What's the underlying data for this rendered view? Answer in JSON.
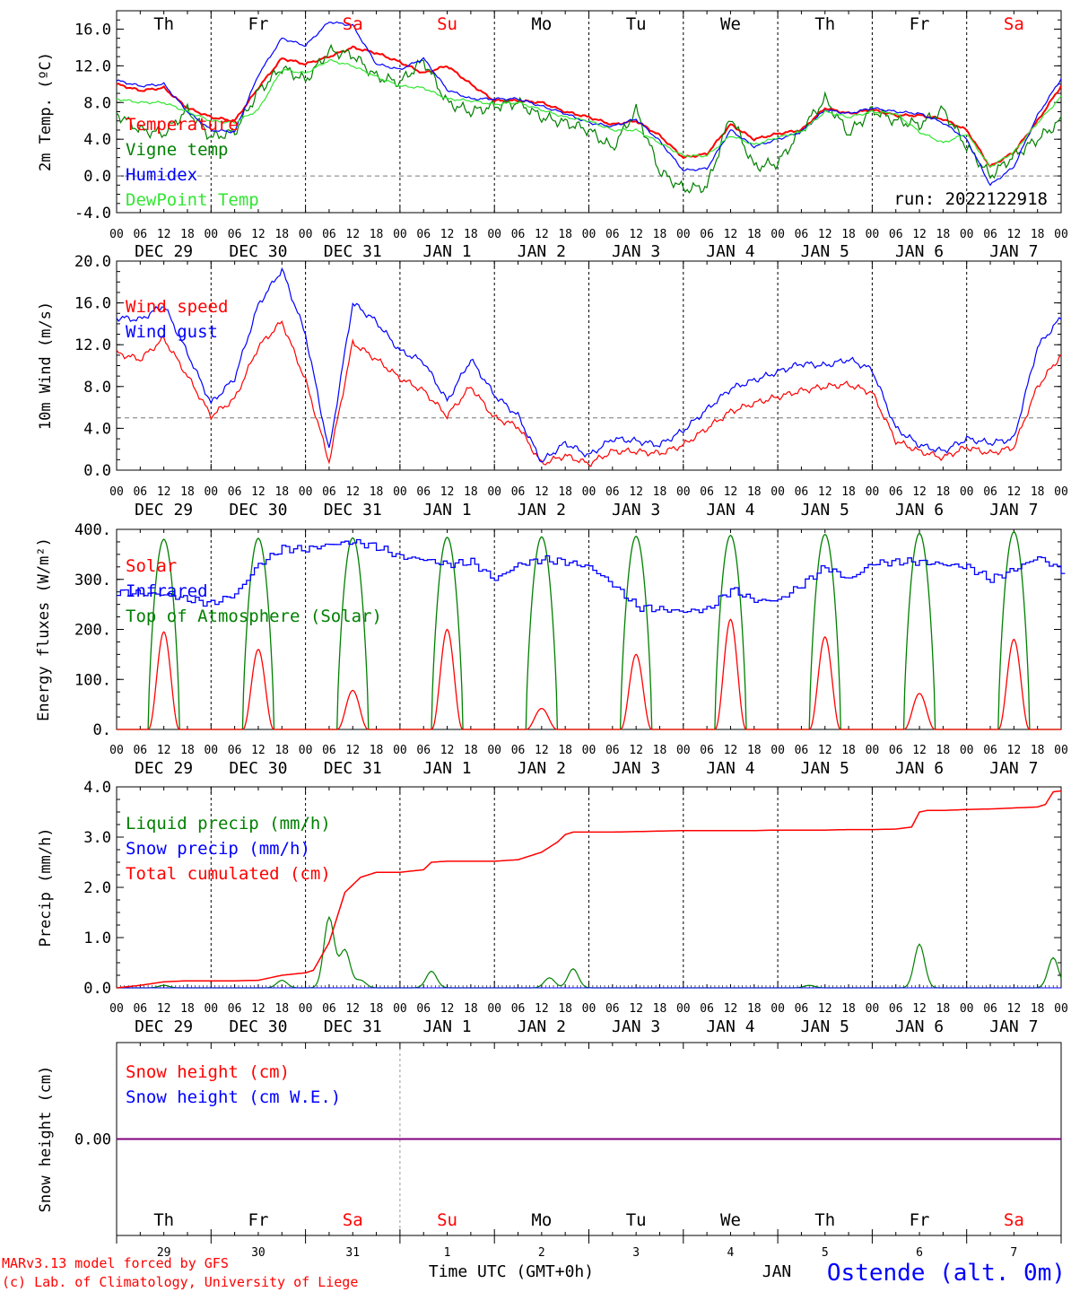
{
  "days": [
    "Th",
    "Fr",
    "Sa",
    "Su",
    "Mo",
    "Tu",
    "We",
    "Th",
    "Fr",
    "Sa"
  ],
  "weekend_days": [
    "Sa",
    "Su"
  ],
  "date_labels": [
    "DEC 29",
    "DEC 30",
    "DEC 31",
    "JAN  1",
    "JAN  2",
    "JAN  3",
    "JAN  4",
    "JAN  5",
    "JAN  6",
    "JAN  7"
  ],
  "hour_ticks": [
    "00",
    "06",
    "12",
    "18"
  ],
  "bottom_day_numbers": [
    "29",
    "30",
    "31",
    "1",
    "2",
    "3",
    "4",
    "5",
    "6",
    "7"
  ],
  "footer": {
    "model": "MARv3.13 model forced by GFS",
    "copyright": "(c) Lab. of Climatology, University of Liege",
    "time_axis": "Time UTC (GMT+0h)",
    "month": "JAN",
    "location": "Ostende (alt. 0m)"
  },
  "colors": {
    "red": "#ff0000",
    "green": "#008000",
    "blue": "#0000ff",
    "lightgreen": "#33e633",
    "purple": "#7f007f"
  },
  "chart_data": [
    {
      "type": "line",
      "ylabel": "2m Temp. (ºC)",
      "ylim": [
        -4,
        18
      ],
      "yticks": [
        "-4.0",
        "0.0",
        "4.0",
        "8.0",
        "12.0",
        "16.0"
      ],
      "ytick_values": [
        -4,
        0,
        4,
        8,
        12,
        16
      ],
      "ref_line": 0,
      "run_label": "run: 2022122918",
      "x_unit": "hours since DEC 29 00 UTC",
      "series": [
        {
          "name": "Temperature",
          "color": "#ff0000",
          "x": [
            0,
            6,
            12,
            18,
            24,
            30,
            36,
            42,
            48,
            54,
            60,
            66,
            72,
            78,
            84,
            90,
            96,
            102,
            108,
            114,
            120,
            126,
            132,
            138,
            144,
            150,
            156,
            162,
            168,
            174,
            180,
            186,
            192,
            198,
            204,
            210,
            216,
            222,
            228,
            234,
            240
          ],
          "values": [
            10,
            9.3,
            9.6,
            7.4,
            6.4,
            6.0,
            9.6,
            12.8,
            12.2,
            13.0,
            14.0,
            13.4,
            12.4,
            11.2,
            12.0,
            10.0,
            8.2,
            8.2,
            8.0,
            7.0,
            6.4,
            5.6,
            6.0,
            4.4,
            2.0,
            2.4,
            5.6,
            4.0,
            4.6,
            5.0,
            7.4,
            6.8,
            7.2,
            6.6,
            6.6,
            6.2,
            5.0,
            1.0,
            2.6,
            6.0,
            9.8
          ]
        },
        {
          "name": "Vigne temp",
          "color": "#008000",
          "x": [
            0,
            6,
            12,
            18,
            24,
            30,
            36,
            42,
            48,
            54,
            60,
            66,
            72,
            78,
            84,
            90,
            96,
            102,
            108,
            114,
            120,
            126,
            132,
            138,
            144,
            150,
            156,
            162,
            168,
            174,
            180,
            186,
            192,
            198,
            204,
            210,
            216,
            222,
            228,
            234,
            240
          ],
          "values": [
            6.8,
            5.0,
            4.6,
            7.2,
            4.2,
            4.8,
            9.2,
            11.8,
            10.4,
            13.6,
            13.2,
            10.8,
            10.2,
            12.6,
            8.0,
            7.0,
            7.6,
            8.0,
            6.4,
            5.8,
            5.0,
            3.0,
            7.2,
            0.5,
            -1.4,
            -1.2,
            6.6,
            1.0,
            1.4,
            5.0,
            8.4,
            4.6,
            7.2,
            6.0,
            5.6,
            7.2,
            3.2,
            0.0,
            2.2,
            4.0,
            6.0
          ]
        },
        {
          "name": "Humidex",
          "color": "#0000ff",
          "x": [
            0,
            6,
            12,
            18,
            24,
            30,
            36,
            42,
            48,
            54,
            60,
            66,
            72,
            78,
            84,
            90,
            96,
            102,
            108,
            114,
            120,
            126,
            132,
            138,
            144,
            150,
            156,
            162,
            168,
            174,
            180,
            186,
            192,
            198,
            204,
            210,
            216,
            222,
            228,
            234,
            240
          ],
          "values": [
            10.4,
            9.8,
            10.0,
            7.0,
            5.0,
            4.8,
            11.0,
            15.0,
            14.2,
            16.8,
            16.4,
            12.2,
            11.6,
            12.8,
            9.4,
            8.4,
            8.4,
            8.4,
            7.6,
            6.8,
            5.8,
            5.4,
            6.2,
            3.8,
            0.6,
            0.8,
            5.0,
            3.2,
            4.0,
            4.8,
            7.2,
            6.8,
            7.4,
            7.0,
            6.8,
            5.8,
            4.0,
            -1.0,
            1.0,
            6.6,
            10.6
          ]
        },
        {
          "name": "DewPoint Temp",
          "color": "#33e633",
          "x": [
            0,
            6,
            12,
            18,
            24,
            30,
            36,
            42,
            48,
            54,
            60,
            66,
            72,
            78,
            84,
            90,
            96,
            102,
            108,
            114,
            120,
            126,
            132,
            138,
            144,
            150,
            156,
            162,
            168,
            174,
            180,
            186,
            192,
            198,
            204,
            210,
            216,
            222,
            228,
            234,
            240
          ],
          "values": [
            8.4,
            8.0,
            8.0,
            7.0,
            6.0,
            5.8,
            7.2,
            11.6,
            11.2,
            12.6,
            12.0,
            10.8,
            9.8,
            9.6,
            8.4,
            8.2,
            7.8,
            8.0,
            7.2,
            6.4,
            6.0,
            5.0,
            5.0,
            3.6,
            2.2,
            2.2,
            4.4,
            3.4,
            4.2,
            4.8,
            7.0,
            6.4,
            7.0,
            6.8,
            4.8,
            3.6,
            4.6,
            1.0,
            2.6,
            5.8,
            8.6
          ]
        }
      ]
    },
    {
      "type": "line",
      "ylabel": "10m Wind (m/s)",
      "ylim": [
        0,
        20
      ],
      "yticks": [
        "0.0",
        "4.0",
        "8.0",
        "12.0",
        "16.0",
        "20.0"
      ],
      "ytick_values": [
        0,
        4,
        8,
        12,
        16,
        20
      ],
      "ref_line": 5,
      "x_unit": "hours since DEC 29 00 UTC",
      "series": [
        {
          "name": "Wind speed",
          "color": "#ff0000",
          "x": [
            0,
            6,
            12,
            18,
            24,
            30,
            36,
            42,
            48,
            54,
            60,
            66,
            72,
            78,
            84,
            90,
            96,
            102,
            108,
            114,
            120,
            126,
            132,
            138,
            144,
            150,
            156,
            162,
            168,
            174,
            180,
            186,
            192,
            198,
            204,
            210,
            216,
            222,
            228,
            234,
            240
          ],
          "values": [
            11.2,
            10.6,
            12.6,
            9.0,
            5.2,
            6.8,
            11.8,
            14.2,
            8.6,
            0.8,
            12.2,
            10.6,
            8.8,
            7.6,
            5.2,
            8.0,
            5.0,
            4.2,
            0.6,
            1.4,
            0.6,
            1.8,
            1.8,
            1.6,
            2.4,
            4.0,
            5.6,
            6.4,
            7.0,
            7.6,
            8.0,
            8.2,
            7.4,
            2.8,
            1.8,
            1.2,
            2.2,
            1.6,
            2.2,
            8.0,
            11.0
          ]
        },
        {
          "name": "Wind gust",
          "color": "#0000ff",
          "x": [
            0,
            6,
            12,
            18,
            24,
            30,
            36,
            42,
            48,
            54,
            60,
            66,
            72,
            78,
            84,
            90,
            96,
            102,
            108,
            114,
            120,
            126,
            132,
            138,
            144,
            150,
            156,
            162,
            168,
            174,
            180,
            186,
            192,
            198,
            204,
            210,
            216,
            222,
            228,
            234,
            240
          ],
          "values": [
            14.6,
            14.4,
            15.8,
            11.2,
            6.4,
            8.8,
            15.8,
            19.2,
            13.0,
            1.8,
            16.0,
            14.2,
            11.4,
            10.4,
            6.6,
            10.6,
            7.2,
            5.2,
            0.8,
            2.6,
            1.4,
            3.0,
            2.8,
            2.4,
            3.8,
            5.8,
            7.8,
            8.6,
            9.4,
            10.2,
            10.0,
            10.6,
            9.6,
            4.0,
            2.4,
            1.8,
            3.0,
            2.6,
            3.0,
            11.8,
            14.6
          ]
        }
      ]
    },
    {
      "type": "line",
      "ylabel": "Energy fluxes (W/m²)",
      "ylim": [
        0,
        400
      ],
      "yticks": [
        "0.",
        "100.",
        "200.",
        "300.",
        "400."
      ],
      "ytick_values": [
        0,
        100,
        200,
        300,
        400
      ],
      "x_unit": "hours since DEC 29 00 UTC",
      "daylight_hours": [
        8,
        16
      ],
      "series": [
        {
          "name": "Solar",
          "color": "#ff0000",
          "daily_peak": [
            195,
            160,
            78,
            200,
            42,
            150,
            220,
            185,
            72,
            180
          ]
        },
        {
          "name": "Infrared",
          "color": "#0000ff",
          "x": [
            0,
            6,
            12,
            18,
            24,
            30,
            36,
            42,
            48,
            54,
            60,
            66,
            72,
            78,
            84,
            90,
            96,
            102,
            108,
            114,
            120,
            126,
            132,
            138,
            144,
            150,
            156,
            162,
            168,
            174,
            180,
            186,
            192,
            198,
            204,
            210,
            216,
            222,
            228,
            234,
            240
          ],
          "values": [
            275,
            272,
            270,
            260,
            252,
            270,
            330,
            362,
            360,
            370,
            375,
            365,
            345,
            340,
            330,
            335,
            300,
            330,
            340,
            335,
            325,
            290,
            245,
            240,
            236,
            240,
            280,
            258,
            258,
            290,
            325,
            300,
            332,
            335,
            335,
            330,
            325,
            300,
            320,
            345,
            318
          ]
        },
        {
          "name": "Top of Atmosphere (Solar)",
          "color": "#008000",
          "daily_peak": [
            380,
            382,
            383,
            384,
            385,
            386,
            388,
            390,
            392,
            395
          ]
        }
      ]
    },
    {
      "type": "line",
      "ylabel": "Precip (mm/h)",
      "ylim": [
        0,
        4
      ],
      "yticks": [
        "0.0",
        "1.0",
        "2.0",
        "3.0",
        "4.0"
      ],
      "ytick_values": [
        0,
        1,
        2,
        3,
        4
      ],
      "x_unit": "hours since DEC 29 00 UTC",
      "series": [
        {
          "name": "Liquid precip (mm/h)",
          "color": "#008000",
          "peaks": [
            [
              12,
              0.05
            ],
            [
              42,
              0.15
            ],
            [
              54,
              1.4
            ],
            [
              58,
              0.75
            ],
            [
              62,
              0.15
            ],
            [
              80,
              0.33
            ],
            [
              110,
              0.2
            ],
            [
              116,
              0.38
            ],
            [
              176,
              0.05
            ],
            [
              204,
              0.87
            ],
            [
              238,
              0.6
            ]
          ]
        },
        {
          "name": "Snow precip (mm/h)",
          "color": "#0000ff",
          "values": [
            0
          ]
        },
        {
          "name": "Total cumulated (cm)",
          "color": "#ff0000",
          "x": [
            0,
            6,
            12,
            18,
            24,
            30,
            36,
            42,
            48,
            50,
            54,
            58,
            62,
            66,
            72,
            78,
            80,
            84,
            90,
            96,
            102,
            108,
            112,
            114,
            116,
            120,
            126,
            132,
            138,
            144,
            150,
            156,
            162,
            168,
            174,
            180,
            186,
            192,
            198,
            202,
            204,
            206,
            210,
            216,
            222,
            228,
            234,
            236,
            238,
            240
          ],
          "values": [
            0,
            0.05,
            0.12,
            0.14,
            0.14,
            0.14,
            0.15,
            0.25,
            0.3,
            0.35,
            0.9,
            1.9,
            2.2,
            2.3,
            2.3,
            2.35,
            2.5,
            2.52,
            2.52,
            2.52,
            2.55,
            2.7,
            2.9,
            3.05,
            3.1,
            3.1,
            3.1,
            3.11,
            3.12,
            3.13,
            3.13,
            3.13,
            3.13,
            3.14,
            3.14,
            3.14,
            3.15,
            3.15,
            3.16,
            3.2,
            3.5,
            3.53,
            3.53,
            3.55,
            3.56,
            3.58,
            3.6,
            3.65,
            3.9,
            3.92
          ]
        }
      ]
    },
    {
      "type": "line",
      "ylabel": "Snow height (cm)",
      "yticks": [
        "0.00"
      ],
      "ytick_values": [
        0
      ],
      "x_unit": "hours since DEC 29 00 UTC",
      "series": [
        {
          "name": "Snow height (cm)",
          "color": "#ff0000",
          "values": [
            0
          ]
        },
        {
          "name": "Snow height (cm W.E.)",
          "color": "#0000ff",
          "values": [
            0
          ]
        }
      ]
    }
  ]
}
